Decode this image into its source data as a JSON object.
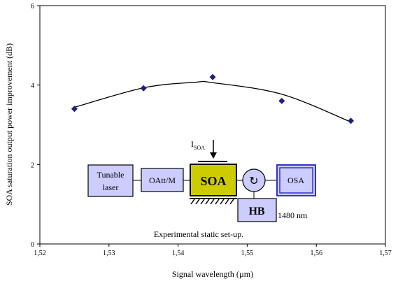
{
  "chart_data": {
    "type": "scatter",
    "title": "",
    "xlabel": "Signal wavelength (µm)",
    "ylabel": "SOA saturation output power improvement (dB)",
    "xlim": [
      1.52,
      1.57
    ],
    "ylim": [
      0,
      6
    ],
    "x_ticks": [
      1.52,
      1.53,
      1.54,
      1.55,
      1.56,
      1.57
    ],
    "x_tick_labels": [
      "1,52",
      "1,53",
      "1,54",
      "1,55",
      "1,56",
      "1,57"
    ],
    "y_ticks": [
      0,
      2,
      4,
      6
    ],
    "y_tick_labels": [
      "0",
      "2",
      "4",
      "6"
    ],
    "grid": false,
    "marker_color": "#1f1f7a",
    "series": [
      {
        "x": [
          1.525,
          1.535,
          1.545,
          1.555,
          1.565
        ],
        "y": [
          3.4,
          3.92,
          4.2,
          3.6,
          3.1
        ]
      }
    ],
    "trendline": {
      "type": "polynomial-2",
      "points": [
        [
          1.525,
          3.44
        ],
        [
          1.535,
          3.93
        ],
        [
          1.5425,
          4.07
        ],
        [
          1.545,
          4.06
        ],
        [
          1.555,
          3.77
        ],
        [
          1.565,
          3.07
        ]
      ]
    }
  },
  "inset": {
    "caption": "Experimental static set-up.",
    "tunable_laser_line1": "Tunable",
    "tunable_laser_line2": "laser",
    "oatt": "OAtt/M",
    "soa": "SOA",
    "isoa_main": "I",
    "isoa_sub": "SOA",
    "circulator_symbol": "↻",
    "osa": "OSA",
    "hb": "HB",
    "pump_wavelength": "1480 nm",
    "colors": {
      "box_fill": "#ccccff",
      "soa_fill": "#cccc00",
      "osa_border": "#3333cc"
    }
  }
}
